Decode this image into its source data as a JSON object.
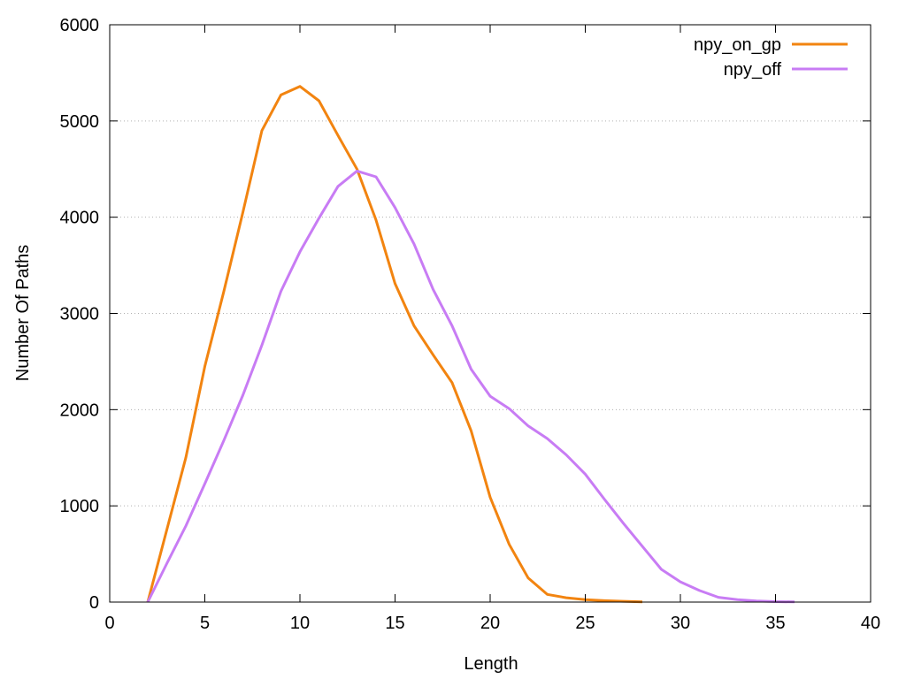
{
  "chart_data": {
    "type": "line",
    "title": "",
    "xlabel": "Length",
    "ylabel": "Number Of Paths",
    "xlim": [
      0,
      40
    ],
    "ylim": [
      0,
      6000
    ],
    "xticks": [
      0,
      5,
      10,
      15,
      20,
      25,
      30,
      35,
      40
    ],
    "xtick_labels": [
      "0",
      "5",
      "10",
      "15",
      "20",
      "25",
      "30",
      "35",
      "40"
    ],
    "yticks": [
      0,
      1000,
      2000,
      3000,
      4000,
      5000,
      6000
    ],
    "ytick_labels": [
      "0",
      "1000",
      "2000",
      "3000",
      "4000",
      "5000",
      "6000"
    ],
    "grid": "horizontal dotted",
    "legend_position": "top-right",
    "series": [
      {
        "name": "npy_on_gp",
        "color": "#f28410",
        "x": [
          2,
          3,
          4,
          5,
          6,
          7,
          8,
          9,
          10,
          11,
          12,
          13,
          14,
          15,
          16,
          17,
          18,
          19,
          20,
          21,
          22,
          23,
          24,
          25,
          26,
          27,
          28
        ],
        "y": [
          0,
          750,
          1500,
          2450,
          3230,
          4050,
          4900,
          5270,
          5360,
          5210,
          4850,
          4500,
          3970,
          3310,
          2870,
          2570,
          2280,
          1780,
          1090,
          600,
          250,
          80,
          45,
          25,
          15,
          8,
          3
        ]
      },
      {
        "name": "npy_off",
        "color": "#c87cf4",
        "x": [
          2,
          3,
          4,
          5,
          6,
          7,
          8,
          9,
          10,
          11,
          12,
          13,
          14,
          15,
          16,
          17,
          18,
          19,
          20,
          21,
          22,
          23,
          24,
          25,
          26,
          27,
          28,
          29,
          30,
          31,
          32,
          33,
          34,
          35,
          36
        ],
        "y": [
          0,
          400,
          790,
          1230,
          1680,
          2150,
          2670,
          3230,
          3640,
          3990,
          4320,
          4480,
          4420,
          4100,
          3720,
          3250,
          2870,
          2420,
          2140,
          2010,
          1830,
          1700,
          1530,
          1330,
          1070,
          820,
          580,
          340,
          210,
          120,
          50,
          25,
          12,
          5,
          2
        ]
      }
    ]
  }
}
